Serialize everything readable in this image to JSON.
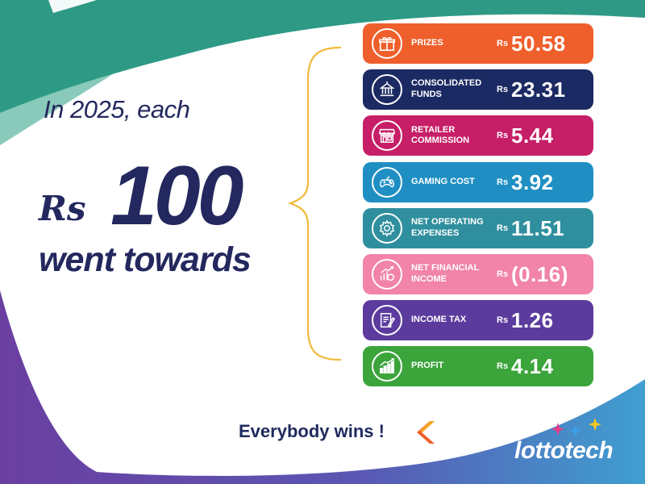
{
  "intro": "In 2025, each",
  "currency_big": "Rs",
  "amount_big": "100",
  "went_towards": "went towards",
  "rows": [
    {
      "label": "PRIZES",
      "currency": "Rs",
      "value": "50.58",
      "color": "#ef5f2b",
      "icon": "gift-icon"
    },
    {
      "label": "CONSOLIDATED FUNDS",
      "currency": "Rs",
      "value": "23.31",
      "color": "#1c2a63",
      "icon": "government-building-icon"
    },
    {
      "label": "RETAILER COMMISSION",
      "currency": "Rs",
      "value": "5.44",
      "color": "#c61f67",
      "icon": "storefront-icon"
    },
    {
      "label": "GAMING COST",
      "currency": "Rs",
      "value": "3.92",
      "color": "#1f8fc3",
      "icon": "gamepad-icon"
    },
    {
      "label": "NET OPERATING EXPENSES",
      "currency": "Rs",
      "value": "11.51",
      "color": "#2f8f9e",
      "icon": "gear-icon"
    },
    {
      "label": "NET FINANCIAL INCOME",
      "currency": "Rs",
      "value": "(0.16)",
      "color": "#f184a8",
      "icon": "financial-growth-icon"
    },
    {
      "label": "INCOME TAX",
      "currency": "Rs",
      "value": "1.26",
      "color": "#5c3b9e",
      "icon": "tax-document-icon"
    },
    {
      "label": "PROFIT",
      "currency": "Rs",
      "value": "4.14",
      "color": "#3ba43b",
      "icon": "profit-chart-icon"
    }
  ],
  "slogan": "Everybody wins !",
  "brand": "lottotech"
}
